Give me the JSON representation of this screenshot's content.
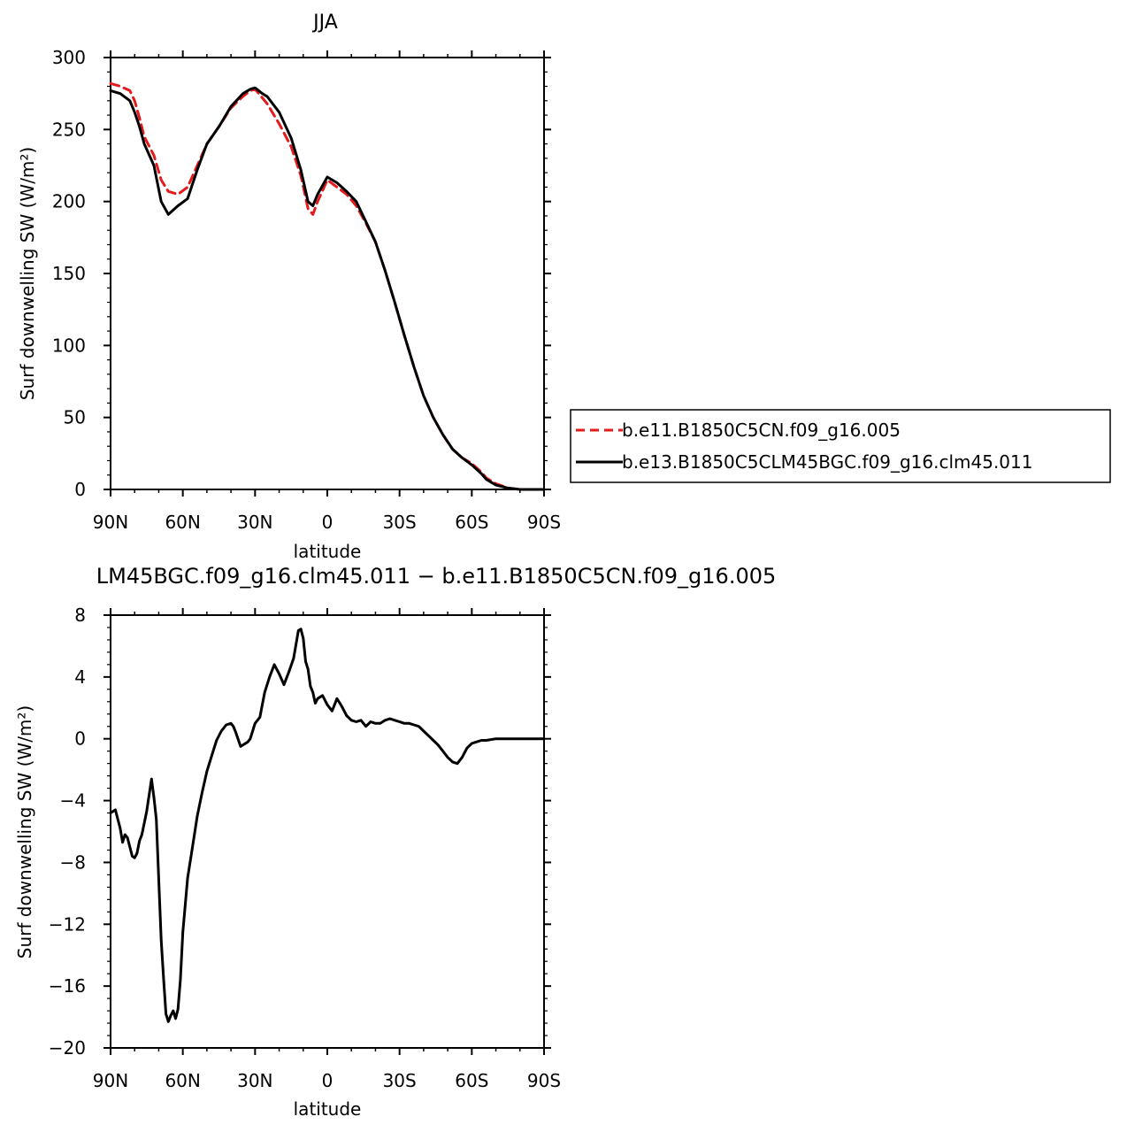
{
  "chart_data": [
    {
      "type": "line",
      "title": "JJA",
      "xlabel": "latitude",
      "ylabel": "Surf downwelling SW (W/m²)",
      "xlim": [
        90,
        -90
      ],
      "ylim": [
        0,
        300
      ],
      "x_ticks": [
        90,
        60,
        30,
        0,
        -30,
        -60,
        -90
      ],
      "x_tick_labels": [
        "90N",
        "60N",
        "30N",
        "0",
        "30S",
        "60S",
        "90S"
      ],
      "y_ticks": [
        0,
        50,
        100,
        150,
        200,
        250,
        300
      ],
      "y_tick_labels": [
        "0",
        "50",
        "100",
        "150",
        "200",
        "250",
        "300"
      ],
      "legend_position": "right",
      "series": [
        {
          "name": "b.e11.B1850C5CN.f09_g16.005",
          "color": "#e41a1c",
          "dash": "dashed",
          "x": [
            90,
            86,
            82,
            80,
            78,
            76,
            72,
            69,
            66,
            62,
            58,
            54,
            50,
            45,
            40,
            35,
            32,
            30,
            27,
            25,
            20,
            15,
            11,
            8,
            6,
            4,
            0,
            -4,
            -8,
            -12,
            -16,
            -20,
            -24,
            -28,
            -32,
            -36,
            -40,
            -44,
            -48,
            -52,
            -56,
            -60,
            -64,
            -66,
            -70,
            -75,
            -80,
            -90
          ],
          "y": [
            282,
            280,
            277,
            270,
            258,
            245,
            232,
            215,
            207,
            205,
            210,
            225,
            240,
            252,
            265,
            273,
            277,
            278,
            272,
            268,
            254,
            238,
            218,
            195,
            191,
            200,
            215,
            210,
            205,
            197,
            185,
            172,
            152,
            130,
            107,
            85,
            65,
            50,
            38,
            28,
            22,
            18,
            12,
            8,
            4,
            1,
            0,
            0
          ]
        },
        {
          "name": "b.e13.B1850C5CLM45BGC.f09_g16.clm45.011",
          "color": "#000000",
          "dash": "solid",
          "x": [
            90,
            86,
            82,
            80,
            78,
            76,
            72,
            69,
            66,
            62,
            58,
            54,
            50,
            45,
            40,
            35,
            32,
            30,
            27,
            25,
            20,
            15,
            11,
            8,
            6,
            4,
            0,
            -4,
            -8,
            -12,
            -16,
            -20,
            -24,
            -28,
            -32,
            -36,
            -40,
            -44,
            -48,
            -52,
            -56,
            -60,
            -64,
            -66,
            -70,
            -75,
            -80,
            -90
          ],
          "y": [
            277,
            275,
            270,
            262,
            252,
            240,
            225,
            200,
            191,
            197,
            202,
            222,
            240,
            252,
            266,
            275,
            278,
            279,
            275,
            273,
            262,
            244,
            222,
            200,
            197,
            205,
            217,
            213,
            207,
            200,
            186,
            172,
            152,
            130,
            107,
            85,
            65,
            50,
            38,
            28,
            22,
            17,
            11,
            7,
            3,
            1,
            0,
            0
          ]
        }
      ]
    },
    {
      "type": "line",
      "title": "LM45BGC.f09_g16.clm45.011 − b.e11.B1850C5CN.f09_g16.005",
      "xlabel": "latitude",
      "ylabel": "Surf downwelling SW (W/m²)",
      "xlim": [
        90,
        -90
      ],
      "ylim": [
        -20,
        8
      ],
      "x_ticks": [
        90,
        60,
        30,
        0,
        -30,
        -60,
        -90
      ],
      "x_tick_labels": [
        "90N",
        "60N",
        "30N",
        "0",
        "30S",
        "60S",
        "90S"
      ],
      "y_ticks": [
        8,
        4,
        0,
        -4,
        -8,
        -12,
        -16,
        -20
      ],
      "y_tick_labels": [
        "8",
        "4",
        "0",
        "−4",
        "−8",
        "−12",
        "−16",
        "−20"
      ],
      "series": [
        {
          "color": "#000000",
          "dash": "solid",
          "x": [
            90,
            88,
            86,
            85,
            84,
            83,
            82,
            81,
            80,
            79,
            78,
            77,
            75,
            73,
            72,
            71,
            69,
            68,
            67,
            66,
            65,
            64,
            63,
            62,
            61,
            60,
            58,
            56,
            54,
            52,
            50,
            48,
            46,
            44,
            42,
            40,
            39,
            38,
            36,
            34,
            33,
            32,
            31,
            30,
            28,
            26,
            24,
            22,
            20,
            18,
            16,
            14,
            12,
            11,
            10,
            9,
            8,
            7,
            6,
            5,
            4,
            2,
            0,
            -2,
            -4,
            -6,
            -8,
            -10,
            -12,
            -14,
            -16,
            -18,
            -20,
            -22,
            -24,
            -26,
            -28,
            -30,
            -32,
            -34,
            -36,
            -38,
            -40,
            -42,
            -44,
            -46,
            -48,
            -50,
            -52,
            -54,
            -56,
            -58,
            -60,
            -62,
            -64,
            -66,
            -70,
            -75,
            -80,
            -90
          ],
          "y": [
            -4.8,
            -4.6,
            -5.8,
            -6.7,
            -6.2,
            -6.4,
            -7,
            -7.6,
            -7.7,
            -7.4,
            -6.6,
            -6.2,
            -4.7,
            -2.6,
            -3.8,
            -5.2,
            -13,
            -15.5,
            -17.8,
            -18.3,
            -17.9,
            -17.6,
            -18.1,
            -17.5,
            -15.6,
            -12.5,
            -9,
            -7,
            -5,
            -3.5,
            -2.1,
            -1.1,
            -0.1,
            0.5,
            0.9,
            1,
            0.8,
            0.4,
            -0.5,
            -0.3,
            -0.2,
            0,
            0.5,
            1,
            1.4,
            3,
            4,
            4.8,
            4.2,
            3.5,
            4.3,
            5.2,
            7,
            7.1,
            6.5,
            5,
            4.5,
            3.4,
            3,
            2.3,
            2.6,
            2.8,
            2.2,
            1.8,
            2.6,
            2.1,
            1.5,
            1.2,
            1.1,
            1.2,
            0.8,
            1.1,
            1,
            1,
            1.2,
            1.3,
            1.2,
            1.1,
            1,
            1,
            0.9,
            0.8,
            0.5,
            0.2,
            -0.1,
            -0.4,
            -0.8,
            -1.2,
            -1.5,
            -1.6,
            -1.2,
            -0.6,
            -0.3,
            -0.2,
            -0.1,
            -0.1,
            0,
            0,
            0,
            0
          ]
        }
      ]
    }
  ]
}
